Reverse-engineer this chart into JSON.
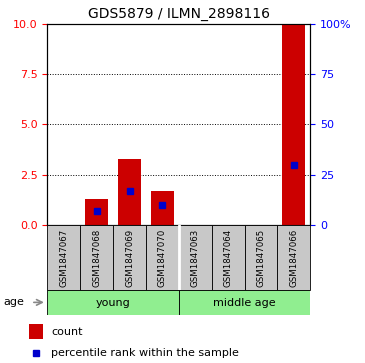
{
  "title": "GDS5879 / ILMN_2898116",
  "samples": [
    "GSM1847067",
    "GSM1847068",
    "GSM1847069",
    "GSM1847070",
    "GSM1847063",
    "GSM1847064",
    "GSM1847065",
    "GSM1847066"
  ],
  "count_values": [
    0,
    1.3,
    3.3,
    1.7,
    0,
    0,
    0,
    10
  ],
  "percentile_values": [
    0,
    7,
    17,
    10,
    0,
    0,
    0,
    30
  ],
  "group_boundary": 4,
  "left_ylim": [
    0,
    10
  ],
  "right_ylim": [
    0,
    100
  ],
  "left_yticks": [
    0,
    2.5,
    5,
    7.5,
    10
  ],
  "right_yticks": [
    0,
    25,
    50,
    75,
    100
  ],
  "right_yticklabels": [
    "0",
    "25",
    "50",
    "75",
    "100%"
  ],
  "bar_color": "#cc0000",
  "dot_color": "#0000cc",
  "label_bg_color": "#c8c8c8",
  "green_color": "#90ee90",
  "age_label": "age",
  "legend_count_label": "count",
  "legend_pct_label": "percentile rank within the sample",
  "young_label": "young",
  "middle_label": "middle age"
}
